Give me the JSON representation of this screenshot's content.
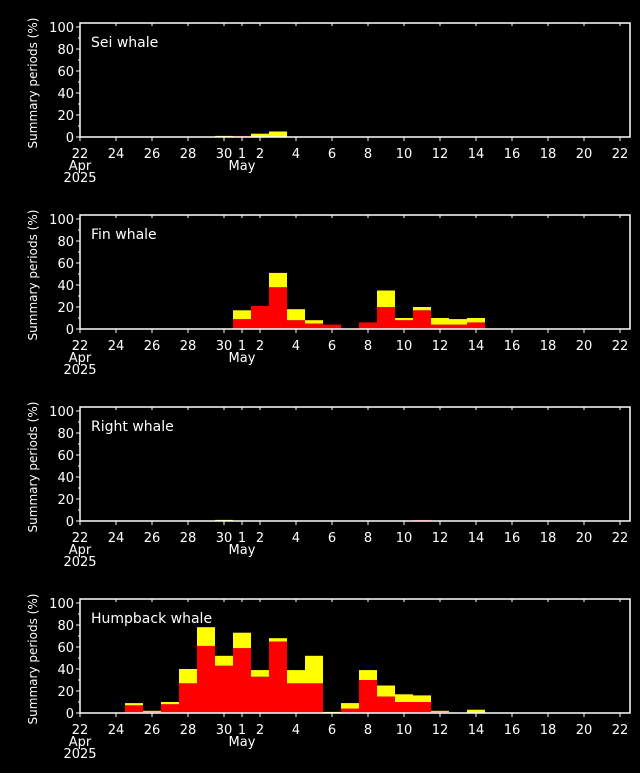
{
  "chart_data": [
    {
      "type": "bar",
      "stacked": true,
      "title": "Sei whale",
      "ylabel": "Summary periods (%)",
      "ylim": [
        0,
        100
      ],
      "yticks": [
        0,
        20,
        40,
        60,
        80,
        100
      ],
      "xlim": [
        "Apr 22 2025",
        "May 22 2025"
      ],
      "series_colors": {
        "red": "#ff0000",
        "yellow": "#ffff00"
      },
      "bars": [
        {
          "date": "Apr 30",
          "red": 0,
          "yellow": 1
        },
        {
          "date": "May 1",
          "red": 1,
          "yellow": 0
        },
        {
          "date": "May 2",
          "red": 0,
          "yellow": 3
        },
        {
          "date": "May 3",
          "red": 0,
          "yellow": 5
        }
      ]
    },
    {
      "type": "bar",
      "stacked": true,
      "title": "Fin whale",
      "ylabel": "Summary periods (%)",
      "ylim": [
        0,
        100
      ],
      "yticks": [
        0,
        20,
        40,
        60,
        80,
        100
      ],
      "xlim": [
        "Apr 22 2025",
        "May 22 2025"
      ],
      "series_colors": {
        "red": "#ff0000",
        "yellow": "#ffff00"
      },
      "bars": [
        {
          "date": "May 1",
          "red": 9,
          "yellow": 8
        },
        {
          "date": "May 2",
          "red": 21,
          "yellow": 0
        },
        {
          "date": "May 3",
          "red": 38,
          "yellow": 13
        },
        {
          "date": "May 4",
          "red": 8,
          "yellow": 10
        },
        {
          "date": "May 5",
          "red": 5,
          "yellow": 3
        },
        {
          "date": "May 6",
          "red": 4,
          "yellow": 0
        },
        {
          "date": "May 8",
          "red": 6,
          "yellow": 0
        },
        {
          "date": "May 9",
          "red": 20,
          "yellow": 15
        },
        {
          "date": "May 10",
          "red": 8,
          "yellow": 2
        },
        {
          "date": "May 11",
          "red": 17,
          "yellow": 3
        },
        {
          "date": "May 12",
          "red": 4,
          "yellow": 6
        },
        {
          "date": "May 13",
          "red": 4,
          "yellow": 5
        },
        {
          "date": "May 14",
          "red": 6,
          "yellow": 4
        }
      ]
    },
    {
      "type": "bar",
      "stacked": true,
      "title": "Right whale",
      "ylabel": "Summary periods (%)",
      "ylim": [
        0,
        100
      ],
      "yticks": [
        0,
        20,
        40,
        60,
        80,
        100
      ],
      "xlim": [
        "Apr 22 2025",
        "May 22 2025"
      ],
      "series_colors": {
        "red": "#ff0000",
        "yellow": "#ffff00"
      },
      "bars": [
        {
          "date": "Apr 30",
          "red": 0,
          "yellow": 1
        },
        {
          "date": "May 11",
          "red": 1,
          "yellow": 0
        }
      ]
    },
    {
      "type": "bar",
      "stacked": true,
      "title": "Humpback whale",
      "ylabel": "Summary periods (%)",
      "ylim": [
        0,
        100
      ],
      "yticks": [
        0,
        20,
        40,
        60,
        80,
        100
      ],
      "xlim": [
        "Apr 22 2025",
        "May 22 2025"
      ],
      "series_colors": {
        "red": "#ff0000",
        "yellow": "#ffff00"
      },
      "bars": [
        {
          "date": "Apr 25",
          "red": 7,
          "yellow": 2
        },
        {
          "date": "Apr 26",
          "red": 1,
          "yellow": 1
        },
        {
          "date": "Apr 27",
          "red": 8,
          "yellow": 2
        },
        {
          "date": "Apr 28",
          "red": 27,
          "yellow": 13
        },
        {
          "date": "Apr 29",
          "red": 61,
          "yellow": 17
        },
        {
          "date": "Apr 30",
          "red": 43,
          "yellow": 9
        },
        {
          "date": "May 1",
          "red": 59,
          "yellow": 14
        },
        {
          "date": "May 2",
          "red": 33,
          "yellow": 6
        },
        {
          "date": "May 3",
          "red": 65,
          "yellow": 3
        },
        {
          "date": "May 4",
          "red": 27,
          "yellow": 12
        },
        {
          "date": "May 5",
          "red": 27,
          "yellow": 25
        },
        {
          "date": "May 6",
          "red": 0,
          "yellow": 1
        },
        {
          "date": "May 7",
          "red": 4,
          "yellow": 5
        },
        {
          "date": "May 8",
          "red": 30,
          "yellow": 9
        },
        {
          "date": "May 9",
          "red": 15,
          "yellow": 10
        },
        {
          "date": "May 10",
          "red": 10,
          "yellow": 7
        },
        {
          "date": "May 11",
          "red": 10,
          "yellow": 6
        },
        {
          "date": "May 12",
          "red": 1,
          "yellow": 1
        },
        {
          "date": "May 14",
          "red": 0,
          "yellow": 3
        }
      ]
    }
  ],
  "x_axis": {
    "ticks": [
      {
        "date": "Apr 22",
        "label": "22"
      },
      {
        "date": "Apr 24",
        "label": "24"
      },
      {
        "date": "Apr 26",
        "label": "26"
      },
      {
        "date": "Apr 28",
        "label": "28"
      },
      {
        "date": "Apr 30",
        "label": "30"
      },
      {
        "date": "May 1",
        "label": "1"
      },
      {
        "date": "May 2",
        "label": "2"
      },
      {
        "date": "May 4",
        "label": "4"
      },
      {
        "date": "May 6",
        "label": "6"
      },
      {
        "date": "May 8",
        "label": "8"
      },
      {
        "date": "May 10",
        "label": "10"
      },
      {
        "date": "May 12",
        "label": "12"
      },
      {
        "date": "May 14",
        "label": "14"
      },
      {
        "date": "May 16",
        "label": "16"
      },
      {
        "date": "May 18",
        "label": "18"
      },
      {
        "date": "May 20",
        "label": "20"
      },
      {
        "date": "May 22",
        "label": "22"
      }
    ],
    "month_labels": [
      {
        "date": "Apr 22",
        "label": "Apr",
        "year": "2025"
      },
      {
        "date": "May 1",
        "label": "May"
      }
    ]
  }
}
